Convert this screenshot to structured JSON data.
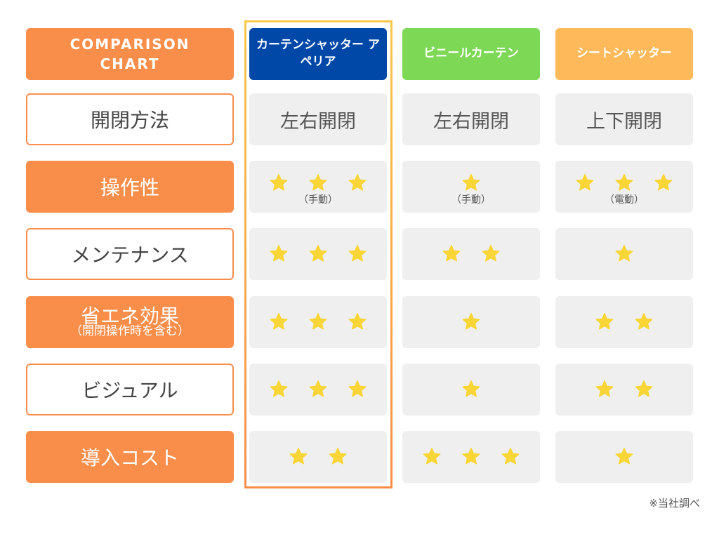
{
  "chart_data": {
    "type": "table",
    "title": "COMPARISON CHART",
    "columns": [
      "カーテンシャッター アペリア",
      "ビニールカーテン",
      "シートシャッター"
    ],
    "column_colors": [
      "#0048a8",
      "#7dd855",
      "#fdb95a"
    ],
    "highlight_color": "#f98e4b",
    "rows": [
      {
        "label": "開閉方法",
        "sublabel": "",
        "values": [
          "左右開閉",
          "左右開閉",
          "上下開閉"
        ],
        "notes": [
          "",
          "",
          ""
        ]
      },
      {
        "label": "操作性",
        "sublabel": "",
        "values": [
          3,
          1,
          3
        ],
        "notes": [
          "（手動）",
          "（手動）",
          "（電動）"
        ]
      },
      {
        "label": "メンテナンス",
        "sublabel": "",
        "values": [
          3,
          2,
          1
        ],
        "notes": [
          "",
          "",
          ""
        ]
      },
      {
        "label": "省エネ効果",
        "sublabel": "（開閉操作時を含む）",
        "values": [
          3,
          1,
          2
        ],
        "notes": [
          "",
          "",
          ""
        ]
      },
      {
        "label": "ビジュアル",
        "sublabel": "",
        "values": [
          3,
          1,
          2
        ],
        "notes": [
          "",
          "",
          ""
        ]
      },
      {
        "label": "導入コスト",
        "sublabel": "",
        "values": [
          2,
          3,
          1
        ],
        "notes": [
          "",
          "",
          ""
        ]
      }
    ],
    "footnote": "※当社調べ"
  }
}
